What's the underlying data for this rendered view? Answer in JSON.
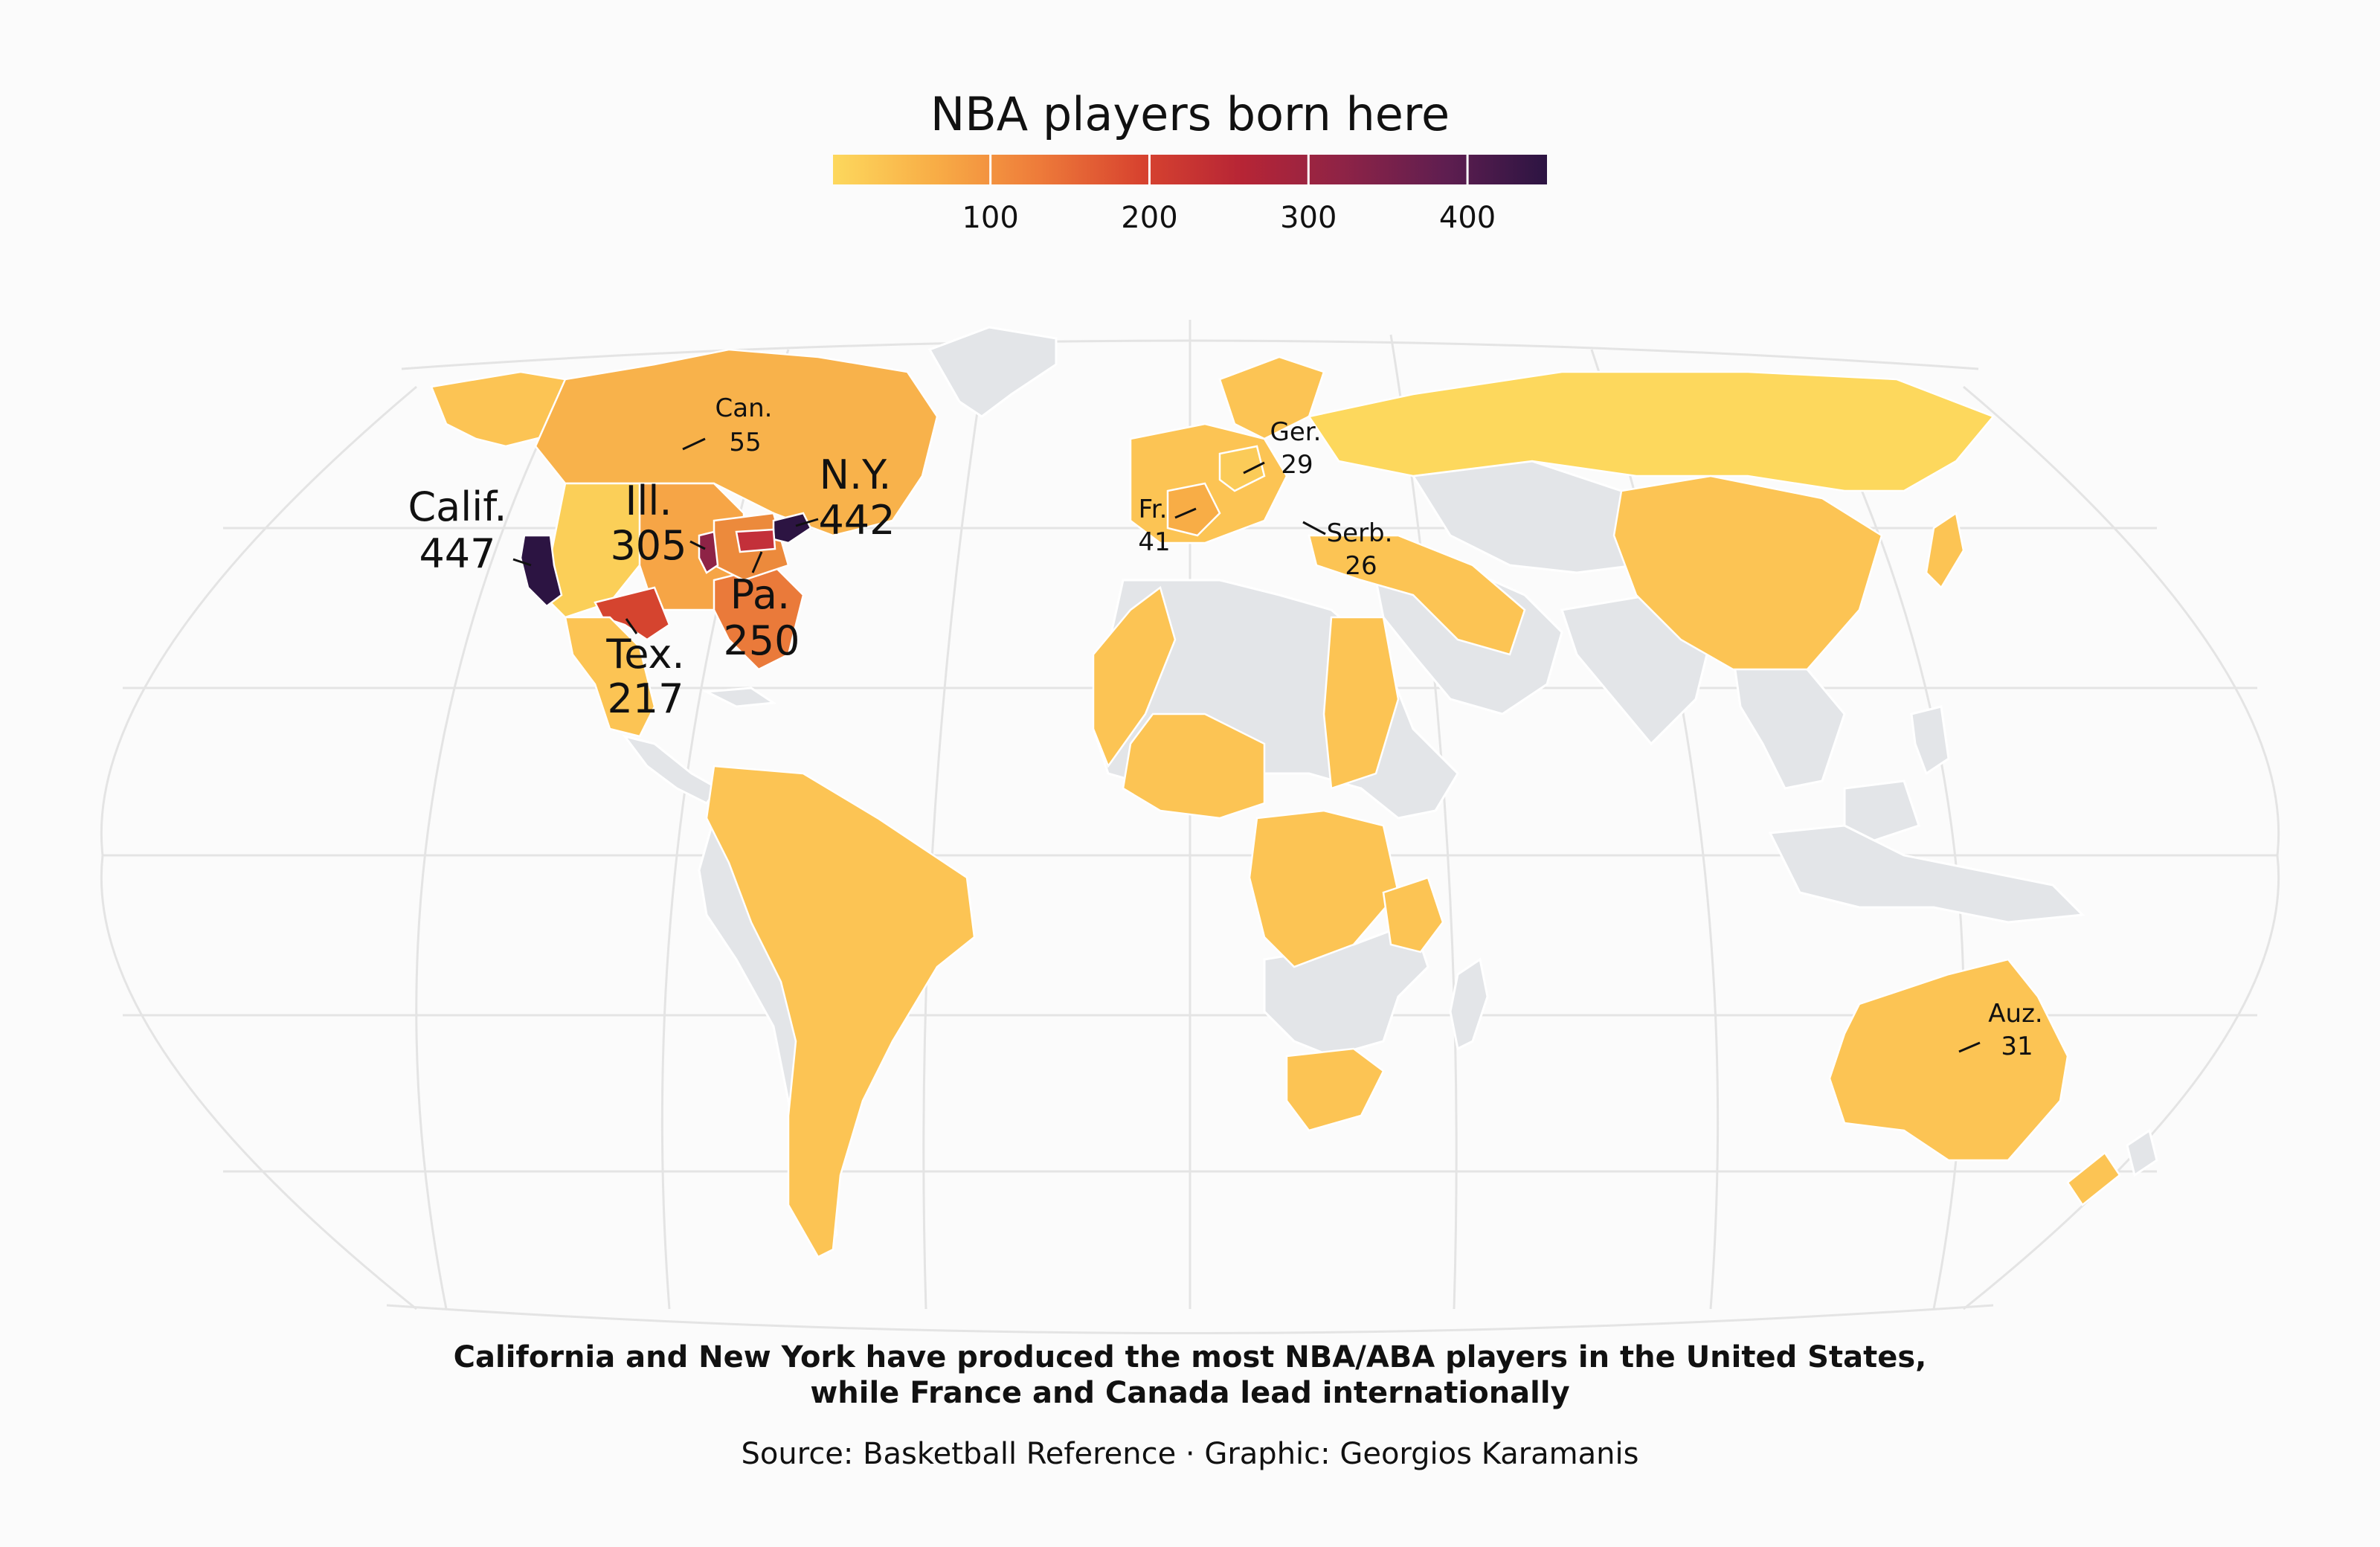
{
  "chart_data": {
    "type": "choropleth-map",
    "title": "NBA players born here",
    "legend": {
      "ticks": [
        100,
        200,
        300,
        400
      ],
      "domain": [
        1,
        450
      ],
      "colors": [
        "#fdd85d",
        "#f8ad46",
        "#ee7c3a",
        "#d8442f",
        "#b72535",
        "#8e2346",
        "#5f1e50",
        "#2c1442"
      ]
    },
    "labels": [
      {
        "id": "calif",
        "name": "Calif.",
        "value": 447,
        "size": "large"
      },
      {
        "id": "ny",
        "name": "N.Y.",
        "value": 442,
        "size": "large"
      },
      {
        "id": "ill",
        "name": "Ill.",
        "value": 305,
        "size": "large"
      },
      {
        "id": "pa",
        "name": "Pa.",
        "value": 250,
        "size": "large"
      },
      {
        "id": "tex",
        "name": "Tex.",
        "value": 217,
        "size": "large"
      },
      {
        "id": "can",
        "name": "Can.",
        "value": 55,
        "size": "small"
      },
      {
        "id": "fr",
        "name": "Fr.",
        "value": 41,
        "size": "small"
      },
      {
        "id": "auz",
        "name": "Auz.",
        "value": 31,
        "size": "small"
      },
      {
        "id": "ger",
        "name": "Ger.",
        "value": 29,
        "size": "small"
      },
      {
        "id": "serb",
        "name": "Serb.",
        "value": 26,
        "size": "small"
      }
    ],
    "caption": [
      "California and New York have produced the most NBA/ABA players in the United States,",
      "while France and Canada lead internationally"
    ],
    "source": "Source: Basketball Reference · Graphic: Georgios Karamanis"
  }
}
